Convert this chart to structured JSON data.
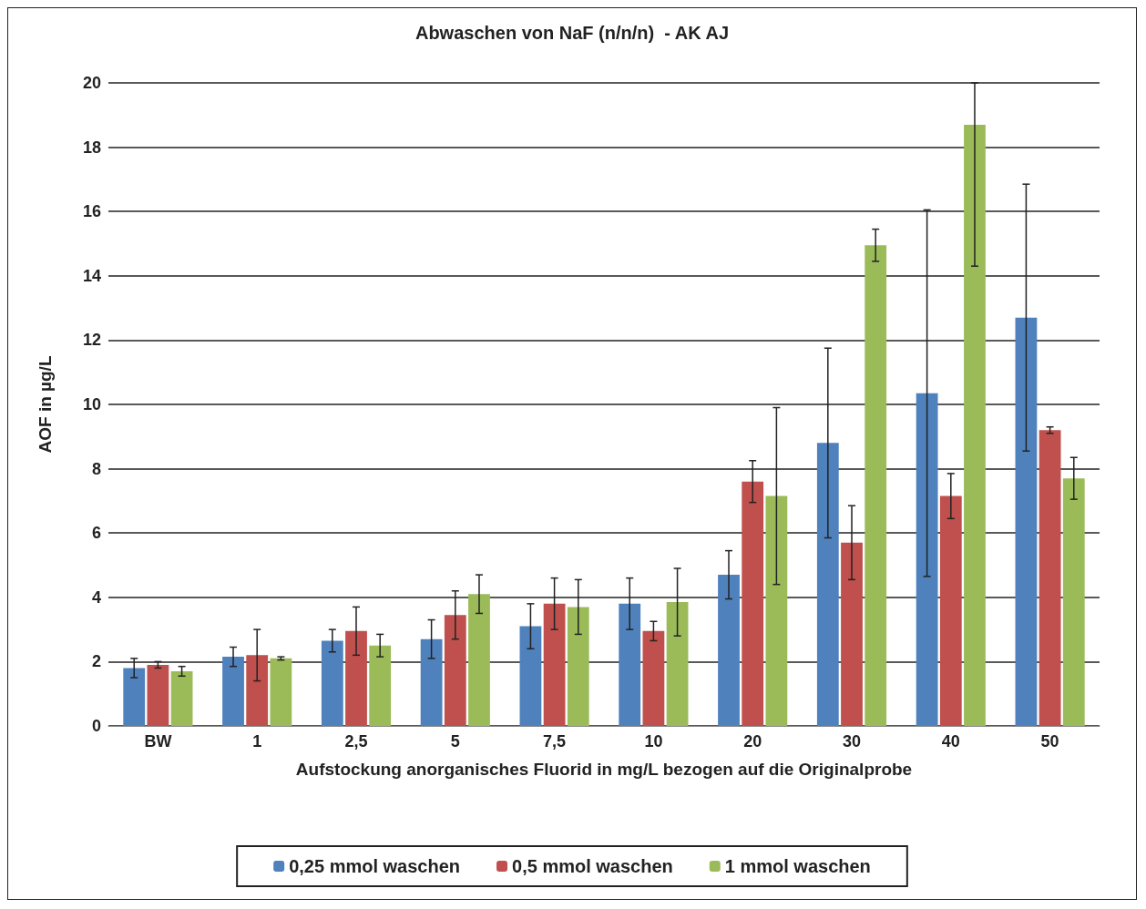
{
  "chart_data": {
    "type": "bar",
    "title": "Abwaschen von NaF (n/n/n)  - AK AJ",
    "xlabel": "Aufstockung anorganisches Fluorid in mg/L bezogen auf die Originalprobe",
    "ylabel": "AOF in µg/L",
    "categories": [
      "BW",
      "1",
      "2,5",
      "5",
      "7,5",
      "10",
      "20",
      "30",
      "40",
      "50"
    ],
    "series": [
      {
        "name": "0,25 mmol waschen",
        "color": "#4f81bd",
        "values": [
          1.8,
          2.15,
          2.65,
          2.7,
          3.1,
          3.8,
          4.7,
          8.8,
          10.35,
          12.7
        ],
        "errors": [
          0.3,
          0.3,
          0.35,
          0.6,
          0.7,
          0.8,
          0.75,
          2.95,
          5.7,
          4.15
        ]
      },
      {
        "name": "0,5 mmol waschen",
        "color": "#c0504d",
        "values": [
          1.9,
          2.2,
          2.95,
          3.45,
          3.8,
          2.95,
          7.6,
          5.7,
          7.15,
          9.2
        ],
        "errors": [
          0.1,
          0.8,
          0.75,
          0.75,
          0.8,
          0.3,
          0.65,
          1.15,
          0.7,
          0.1
        ]
      },
      {
        "name": "1 mmol waschen",
        "color": "#9bbb59",
        "values": [
          1.7,
          2.1,
          2.5,
          4.1,
          3.7,
          3.85,
          7.15,
          14.95,
          18.7,
          7.7
        ],
        "errors": [
          0.15,
          0.05,
          0.35,
          0.6,
          0.85,
          1.05,
          2.75,
          0.5,
          [
            14.3,
            20
          ],
          0.65
        ]
      }
    ],
    "ylim": [
      0,
      20
    ],
    "yticks": [
      0,
      2,
      4,
      6,
      8,
      10,
      12,
      14,
      16,
      18,
      20
    ],
    "grid": "y",
    "legend": "bottom"
  }
}
